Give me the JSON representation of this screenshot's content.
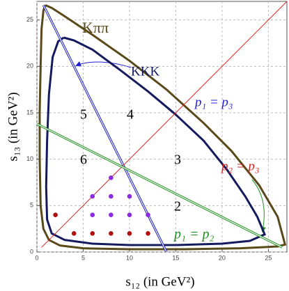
{
  "chart_data": {
    "type": "line",
    "xlabel": "s₁₂ (in GeV²)",
    "ylabel": "s₁₃ (in GeV²)",
    "xlim": [
      0,
      27
    ],
    "ylim": [
      0,
      27
    ],
    "xticks": [
      0,
      5,
      10,
      15,
      20,
      25
    ],
    "yticks": [
      0,
      5,
      10,
      15,
      20,
      25
    ],
    "grid": true,
    "annotations": [
      "5",
      "4",
      "3",
      "6",
      "2"
    ],
    "series": [
      {
        "name": "Kππ",
        "color": "#5a4a1a",
        "type": "line",
        "x": [
          0.9,
          1.6,
          3,
          6,
          10,
          14,
          18,
          21,
          24,
          26,
          26.8,
          26,
          22,
          16,
          10,
          5,
          2.5,
          1.3,
          0.7,
          0.4,
          0.3,
          0.3,
          0.4,
          0.5,
          0.7,
          0.9
        ],
        "values": [
          26.6,
          26.3,
          25.4,
          23.4,
          20.6,
          17.5,
          13.9,
          10.9,
          7.2,
          3.8,
          0.8,
          0.6,
          0.4,
          0.3,
          0.3,
          0.4,
          0.7,
          1.3,
          2.5,
          5,
          10,
          15,
          20,
          24,
          26,
          26.6
        ]
      },
      {
        "name": "KKK",
        "color": "#141a5e",
        "type": "line",
        "x": [
          2.9,
          4,
          6,
          9,
          12,
          15,
          18,
          20.5,
          22.5,
          23.8,
          24.6,
          23,
          20,
          15,
          10,
          6,
          3,
          1.6,
          1.1,
          1,
          1.1,
          1.3,
          1.7,
          2.3,
          2.9
        ],
        "values": [
          23.1,
          22.8,
          21.8,
          19.6,
          17.3,
          14.8,
          12,
          8.9,
          6,
          3.8,
          1.9,
          1.2,
          0.9,
          0.75,
          0.75,
          0.9,
          1.3,
          2,
          3.5,
          7,
          12,
          17,
          21,
          22.7,
          23.1
        ]
      },
      {
        "name": "p₁ = p₃",
        "color": "#2020d0",
        "type": "line",
        "double": true,
        "x": [
          0.7,
          14
        ],
        "values": [
          26.6,
          0
        ]
      },
      {
        "name": "p₂ = p₃",
        "color": "#e02020",
        "type": "line",
        "x": [
          0.5,
          27
        ],
        "values": [
          0.5,
          27
        ]
      },
      {
        "name": "p₁ = p₂",
        "color": "#209020",
        "type": "line",
        "double": true,
        "x": [
          0,
          26.5
        ],
        "values": [
          13.8,
          0.5
        ]
      },
      {
        "color": "#b01010",
        "type": "scatter",
        "x": [
          2,
          4,
          6,
          8,
          10,
          12
        ],
        "values": [
          4,
          2,
          2,
          2,
          2,
          2
        ]
      },
      {
        "color": "#8a2be2",
        "type": "scatter",
        "x": [
          6,
          8,
          10,
          12,
          6,
          8,
          10,
          8
        ],
        "values": [
          4,
          4,
          4,
          4,
          6,
          6,
          6,
          8
        ]
      }
    ]
  }
}
